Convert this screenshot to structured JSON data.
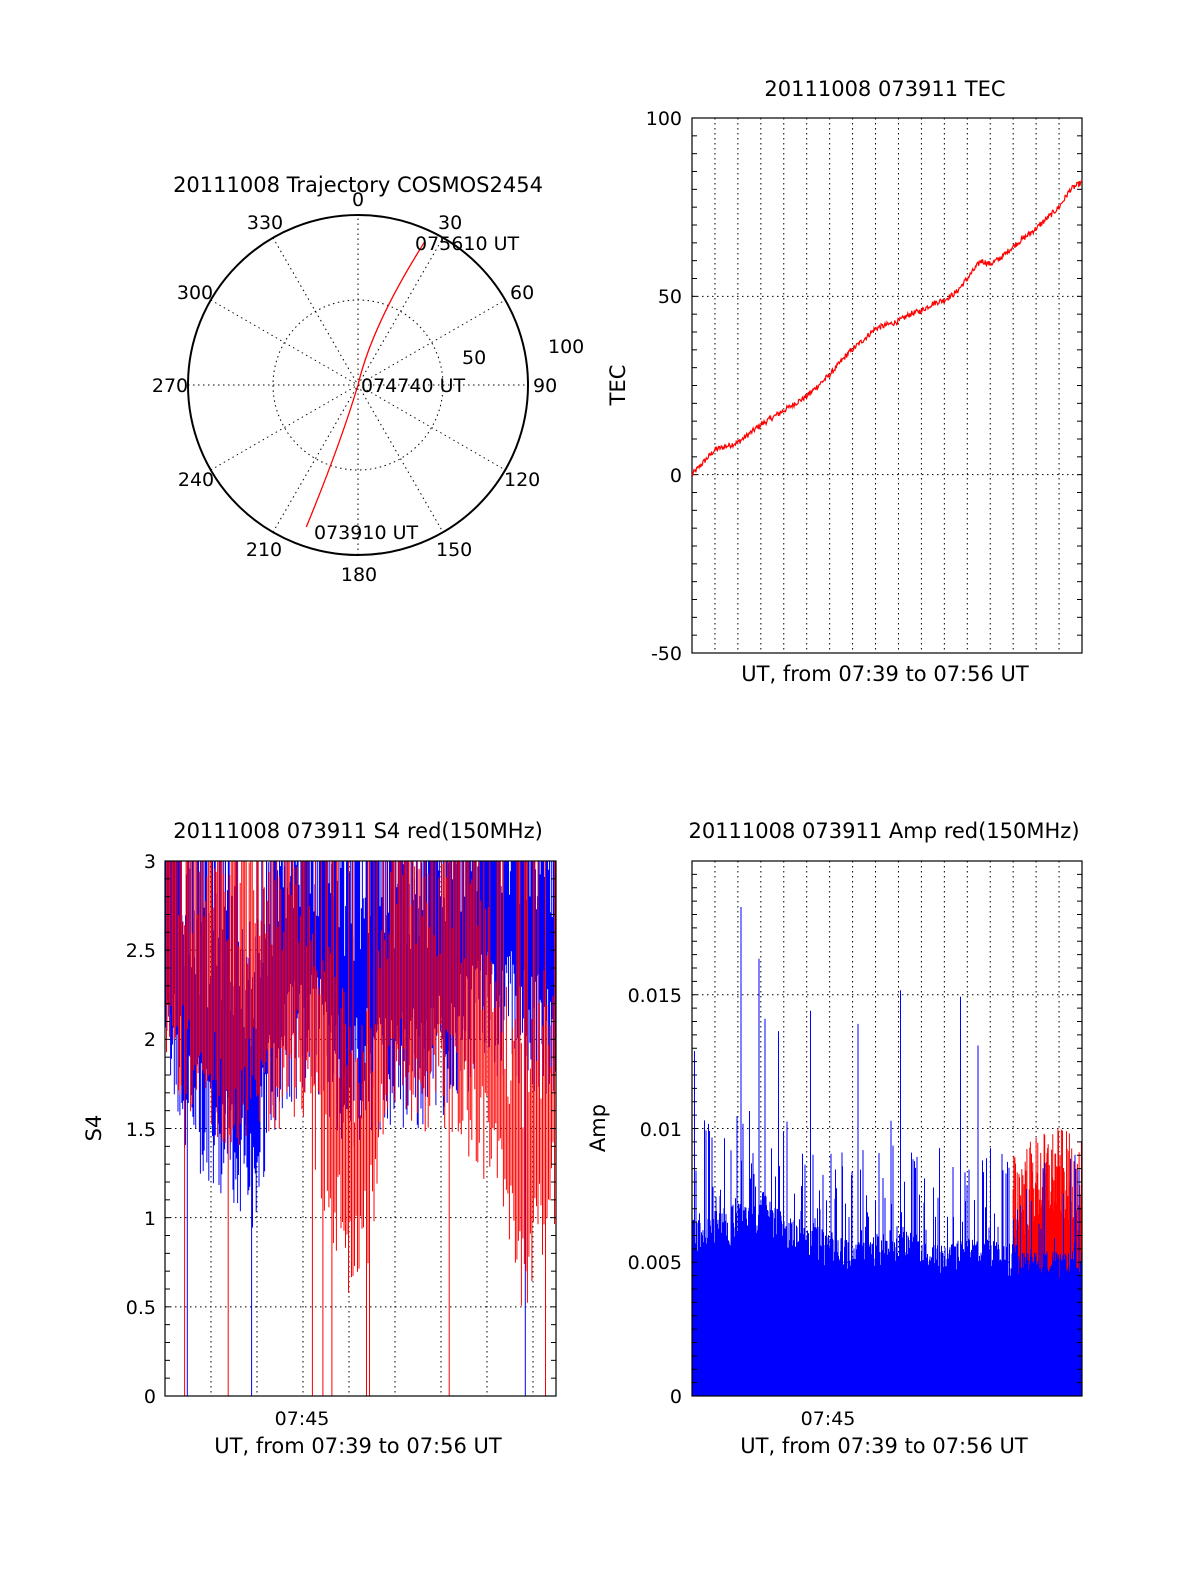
{
  "chart_data": [
    {
      "type": "polar",
      "title": "20111008 Trajectory COSMOS2454",
      "angular_ticks": [
        "0",
        "30",
        "60",
        "90",
        "120",
        "150",
        "180",
        "210",
        "240",
        "270",
        "300",
        "330"
      ],
      "radial_ticks": [
        "50",
        "100"
      ],
      "series": [
        {
          "color": "#ff0000",
          "points": [
            {
              "az": 200,
              "el": 10,
              "label": "073910 UT"
            },
            {
              "az": 0,
              "el": 90,
              "label": "074740 UT"
            },
            {
              "az": 25,
              "el": 6,
              "label": "075610 UT"
            }
          ]
        }
      ],
      "grid": true
    },
    {
      "type": "line",
      "title": "20111008 073911 TEC",
      "xlabel": "UT, from 07:39 to 07:56 UT",
      "ylabel": "TEC",
      "ylim": [
        -50,
        100
      ],
      "yticks": [
        "100",
        "50",
        "0",
        "-50"
      ],
      "xlim_minutes": [
        0,
        17
      ],
      "grid": true,
      "series": [
        {
          "color": "#ff0000",
          "x": [
            0,
            1,
            2,
            3,
            4,
            5,
            6,
            6.8,
            7.5,
            8,
            8.5,
            9,
            9.5,
            10,
            10.5,
            11,
            11.5,
            12,
            12.6,
            13,
            13.5,
            14,
            15,
            16,
            16.5,
            17
          ],
          "y": [
            0,
            7,
            9,
            14,
            18,
            22,
            28,
            34,
            38,
            41,
            42,
            43,
            45,
            46,
            48,
            49,
            51,
            55,
            60,
            59,
            61,
            64,
            69,
            75,
            80,
            82
          ]
        }
      ]
    },
    {
      "type": "line",
      "title": "20111008 073911 S4 red(150MHz)",
      "xlabel": "UT, from 07:39 to 07:56 UT",
      "ylabel": "S4",
      "ylim": [
        0,
        3
      ],
      "yticks": [
        "3",
        "2.5",
        "2",
        "1.5",
        "1",
        "0.5",
        "0"
      ],
      "xtick_labels": [
        "07:45"
      ],
      "xtick_minutes": [
        6
      ],
      "xlim_minutes": [
        0,
        17
      ],
      "grid": true,
      "series": [
        {
          "color": "#0000ff",
          "x": [
            0,
            1,
            2,
            3,
            3.8,
            5,
            6.5,
            8,
            9,
            10,
            11.5,
            13,
            14,
            15,
            16,
            17
          ],
          "y": [
            2.6,
            2.0,
            1.8,
            1.8,
            1.6,
            2.3,
            2.4,
            2.1,
            2.2,
            2.2,
            2.2,
            2.4,
            2.5,
            2.5,
            2.4,
            2.3
          ]
        },
        {
          "color": "#ff0000",
          "x": [
            0,
            1,
            2,
            3,
            4,
            5,
            6,
            7,
            7.5,
            8,
            8.5,
            9,
            10,
            11,
            12,
            13,
            14,
            15,
            15.5,
            16,
            16.5,
            17
          ],
          "y": [
            2.5,
            2.2,
            2.1,
            2.0,
            2.1,
            2.1,
            2.2,
            1.6,
            1.4,
            1.2,
            1.1,
            1.5,
            2.2,
            2.1,
            2.1,
            2.0,
            1.8,
            1.3,
            1.1,
            1.2,
            1.4,
            1.5
          ]
        }
      ]
    },
    {
      "type": "line",
      "title": "20111008 073911 Amp red(150MHz)",
      "xlabel": "UT, from 07:39 to 07:56 UT",
      "ylabel": "Amp",
      "ylim": [
        0,
        0.02
      ],
      "yticks": [
        "0.015",
        "0.01",
        "0.005",
        "0"
      ],
      "xtick_labels": [
        "07:45"
      ],
      "xtick_minutes": [
        6
      ],
      "xlim_minutes": [
        0,
        17
      ],
      "grid": true,
      "series": [
        {
          "color": "#0000ff",
          "x": [
            0,
            1,
            2,
            3,
            4,
            5,
            6,
            7,
            8,
            9,
            10,
            11,
            12,
            13,
            14,
            15,
            16,
            17
          ],
          "y": [
            0.006,
            0.0063,
            0.0066,
            0.007,
            0.0062,
            0.0058,
            0.0057,
            0.0052,
            0.0056,
            0.0058,
            0.0054,
            0.0052,
            0.0054,
            0.0053,
            0.0052,
            0.005,
            0.0049,
            0.005
          ]
        },
        {
          "color": "#ff0000",
          "x": [
            14,
            15,
            16,
            17
          ],
          "y": [
            0.0056,
            0.0063,
            0.0066,
            0.006
          ]
        }
      ]
    }
  ]
}
